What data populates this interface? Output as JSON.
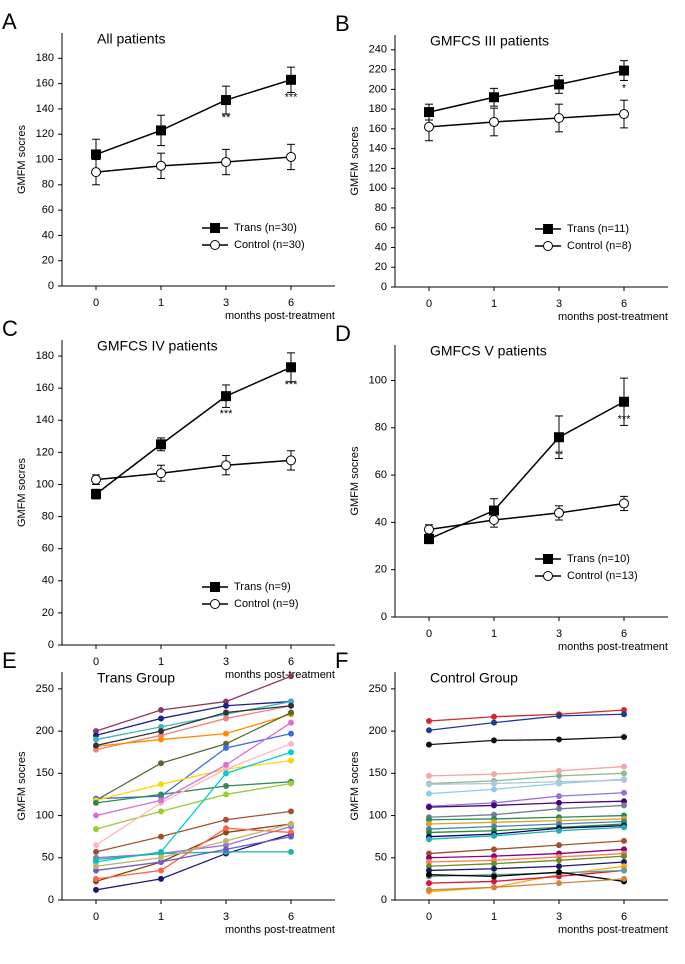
{
  "chart_data": [
    {
      "type": "line",
      "label": "A",
      "title": "All patients",
      "xlabel": "months post-treatment",
      "ylabel": "GMFM socres",
      "categories": [
        "0",
        "1",
        "3",
        "6"
      ],
      "ylim": [
        0,
        200
      ],
      "yticks": [
        0,
        20,
        40,
        60,
        80,
        100,
        120,
        140,
        160,
        180
      ],
      "legend": "lower right",
      "series": [
        {
          "name": "Trans (n=30)",
          "color": "#000000",
          "marker": "square",
          "marker_fill": "#000000",
          "values": [
            104,
            123,
            147,
            163
          ],
          "errors": [
            12,
            12,
            11,
            10
          ]
        },
        {
          "name": "Control (n=30)",
          "color": "#000000",
          "marker": "circle",
          "marker_fill": "#ffffff",
          "values": [
            90,
            95,
            98,
            102
          ],
          "errors": [
            10,
            10,
            10,
            10
          ]
        }
      ],
      "annotations": [
        null,
        null,
        "**",
        "***"
      ]
    },
    {
      "type": "line",
      "label": "B",
      "title": "GMFCS III patients",
      "xlabel": "months post-treatment",
      "ylabel": "GMFM socres",
      "categories": [
        "0",
        "1",
        "3",
        "6"
      ],
      "ylim": [
        0,
        255
      ],
      "yticks": [
        0,
        20,
        40,
        60,
        80,
        100,
        120,
        140,
        160,
        180,
        200,
        220,
        240
      ],
      "legend": "lower right",
      "series": [
        {
          "name": "Trans (n=11)",
          "color": "#000000",
          "marker": "square",
          "marker_fill": "#000000",
          "values": [
            177,
            192,
            205,
            219
          ],
          "errors": [
            8,
            9,
            9,
            10
          ]
        },
        {
          "name": "Control (n=8)",
          "color": "#000000",
          "marker": "circle",
          "marker_fill": "#ffffff",
          "values": [
            162,
            167,
            171,
            175
          ],
          "errors": [
            14,
            14,
            14,
            14
          ]
        }
      ],
      "annotations": [
        null,
        null,
        null,
        "*"
      ]
    },
    {
      "type": "line",
      "label": "C",
      "title": "GMFCS IV patients",
      "xlabel": "months post-treatment",
      "ylabel": "GMFM socres",
      "categories": [
        "0",
        "1",
        "3",
        "6"
      ],
      "ylim": [
        0,
        190
      ],
      "yticks": [
        0,
        20,
        40,
        60,
        80,
        100,
        120,
        140,
        160,
        180
      ],
      "legend": "lower right",
      "series": [
        {
          "name": "Trans (n=9)",
          "color": "#000000",
          "marker": "square",
          "marker_fill": "#000000",
          "values": [
            94,
            125,
            155,
            173
          ],
          "errors": [
            3,
            4,
            7,
            9
          ]
        },
        {
          "name": "Control (n=9)",
          "color": "#000000",
          "marker": "circle",
          "marker_fill": "#ffffff",
          "values": [
            103,
            107,
            112,
            115
          ],
          "errors": [
            3,
            5,
            6,
            6
          ]
        }
      ],
      "annotations": [
        null,
        null,
        "***",
        "***"
      ]
    },
    {
      "type": "line",
      "label": "D",
      "title": "GMFCS V patients",
      "xlabel": "months post-treatment",
      "ylabel": "GMFM socres",
      "categories": [
        "0",
        "1",
        "3",
        "6"
      ],
      "ylim": [
        0,
        115
      ],
      "yticks": [
        0,
        20,
        40,
        60,
        80,
        100
      ],
      "legend": "lower right",
      "series": [
        {
          "name": "Trans (n=10)",
          "color": "#000000",
          "marker": "square",
          "marker_fill": "#000000",
          "values": [
            33,
            45,
            76,
            91
          ],
          "errors": [
            2,
            5,
            9,
            10
          ]
        },
        {
          "name": "Control (n=13)",
          "color": "#000000",
          "marker": "circle",
          "marker_fill": "#ffffff",
          "values": [
            37,
            41,
            44,
            48
          ],
          "errors": [
            2,
            3,
            3,
            3
          ]
        }
      ],
      "annotations": [
        null,
        null,
        "**",
        "***"
      ]
    },
    {
      "type": "line",
      "label": "E",
      "title": "Trans Group",
      "xlabel": "months post-treatment",
      "ylabel": "GMFM socres",
      "categories": [
        "0",
        "1",
        "3",
        "6"
      ],
      "ylim": [
        0,
        270
      ],
      "yticks": [
        0,
        50,
        100,
        150,
        200,
        250
      ],
      "series": [
        {
          "color": "#8b3a62",
          "values": [
            200,
            225,
            235,
            265
          ]
        },
        {
          "color": "#1f1f8f",
          "values": [
            195,
            215,
            230,
            235
          ]
        },
        {
          "color": "#3cb4c8",
          "values": [
            190,
            205,
            220,
            235
          ]
        },
        {
          "color": "#f08080",
          "values": [
            178,
            195,
            215,
            230
          ]
        },
        {
          "color": "#ff8c00",
          "values": [
            182,
            190,
            197,
            220
          ]
        },
        {
          "color": "#333333",
          "values": [
            183,
            200,
            222,
            230
          ]
        },
        {
          "color": "#556b2f",
          "values": [
            118,
            162,
            185,
            222
          ]
        },
        {
          "color": "#4169e1",
          "values": [
            120,
            123,
            180,
            197
          ]
        },
        {
          "color": "#ffd700",
          "values": [
            118,
            137,
            155,
            165
          ]
        },
        {
          "color": "#2e8b57",
          "values": [
            115,
            125,
            135,
            140
          ]
        },
        {
          "color": "#9acd32",
          "values": [
            84,
            105,
            125,
            138
          ]
        },
        {
          "color": "#ffb6c1",
          "values": [
            65,
            115,
            155,
            185
          ]
        },
        {
          "color": "#a0522d",
          "values": [
            57,
            75,
            95,
            105
          ]
        },
        {
          "color": "#00ced1",
          "values": [
            45,
            57,
            150,
            175
          ]
        },
        {
          "color": "#8b4513",
          "values": [
            22,
            45,
            80,
            90
          ]
        },
        {
          "color": "#9370db",
          "values": [
            50,
            55,
            65,
            87
          ]
        },
        {
          "color": "#191970",
          "values": [
            12,
            25,
            55,
            78
          ]
        },
        {
          "color": "#20b2aa",
          "values": [
            48,
            55,
            57,
            57
          ]
        },
        {
          "color": "#ff6347",
          "values": [
            25,
            35,
            85,
            80
          ]
        },
        {
          "color": "#6a5acd",
          "values": [
            35,
            45,
            60,
            75
          ]
        },
        {
          "color": "#bdb76b",
          "values": [
            40,
            50,
            70,
            90
          ]
        },
        {
          "color": "#da70d6",
          "values": [
            100,
            118,
            160,
            210
          ]
        }
      ]
    },
    {
      "type": "line",
      "label": "F",
      "title": "Control Group",
      "xlabel": "months post-treatment",
      "ylabel": "GMFM socres",
      "categories": [
        "0",
        "1",
        "3",
        "6"
      ],
      "ylim": [
        0,
        270
      ],
      "yticks": [
        0,
        50,
        100,
        150,
        200,
        250
      ],
      "series": [
        {
          "color": "#d62728",
          "values": [
            212,
            217,
            220,
            225
          ]
        },
        {
          "color": "#1f3a93",
          "values": [
            201,
            210,
            218,
            220
          ]
        },
        {
          "color": "#111111",
          "values": [
            184,
            189,
            190,
            193
          ]
        },
        {
          "color": "#f4a6a6",
          "values": [
            147,
            149,
            153,
            158
          ]
        },
        {
          "color": "#8fbc8f",
          "values": [
            138,
            141,
            147,
            150
          ]
        },
        {
          "color": "#87ceeb",
          "values": [
            126,
            131,
            138,
            143
          ]
        },
        {
          "color": "#b0c4de",
          "values": [
            137,
            138,
            140,
            142
          ]
        },
        {
          "color": "#9370db",
          "values": [
            111,
            115,
            123,
            127
          ]
        },
        {
          "color": "#4b0082",
          "values": [
            110,
            112,
            115,
            117
          ]
        },
        {
          "color": "#708090",
          "values": [
            98,
            101,
            108,
            112
          ]
        },
        {
          "color": "#2e8b57",
          "values": [
            95,
            96,
            98,
            100
          ]
        },
        {
          "color": "#daa520",
          "values": [
            90,
            92,
            94,
            96
          ]
        },
        {
          "color": "#4682b4",
          "values": [
            84,
            87,
            90,
            93
          ]
        },
        {
          "color": "#228b22",
          "values": [
            80,
            82,
            86,
            90
          ]
        },
        {
          "color": "#000080",
          "values": [
            75,
            78,
            85,
            88
          ]
        },
        {
          "color": "#20b2aa",
          "values": [
            72,
            76,
            82,
            86
          ]
        },
        {
          "color": "#a0522d",
          "values": [
            55,
            60,
            65,
            70
          ]
        },
        {
          "color": "#8b008b",
          "values": [
            50,
            52,
            55,
            60
          ]
        },
        {
          "color": "#ff7f50",
          "values": [
            45,
            47,
            51,
            55
          ]
        },
        {
          "color": "#6b8e23",
          "values": [
            40,
            43,
            47,
            52
          ]
        },
        {
          "color": "#191970",
          "values": [
            35,
            37,
            40,
            45
          ]
        },
        {
          "color": "#ffa500",
          "values": [
            10,
            15,
            30,
            40
          ]
        },
        {
          "color": "#dc143c",
          "values": [
            20,
            22,
            28,
            35
          ]
        },
        {
          "color": "#5f9ea0",
          "values": [
            28,
            30,
            32,
            35
          ]
        },
        {
          "color": "#000000",
          "values": [
            30,
            28,
            33,
            22
          ]
        },
        {
          "color": "#cd853f",
          "values": [
            12,
            15,
            20,
            25
          ]
        }
      ]
    }
  ]
}
